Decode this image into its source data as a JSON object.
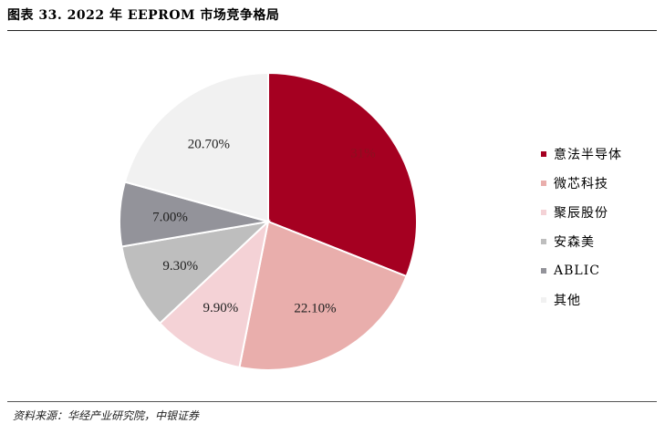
{
  "header": {
    "title": "图表 33.  2022 年 EEPROM 市场竞争格局"
  },
  "footer": {
    "source": "资料来源：华经产业研究院，中银证券"
  },
  "chart_data": {
    "type": "pie",
    "title": "",
    "legend_position": "right",
    "slices": [
      {
        "name": "意法半导体",
        "value": 31,
        "label": "31%",
        "color": "#a50021"
      },
      {
        "name": "微芯科技",
        "value": 22.1,
        "label": "22.10%",
        "color": "#e9aeac"
      },
      {
        "name": "聚辰股份",
        "value": 9.9,
        "label": "9.90%",
        "color": "#f4d2d6"
      },
      {
        "name": "安森美",
        "value": 9.3,
        "label": "9.30%",
        "color": "#bebebe"
      },
      {
        "name": "ABLIC",
        "value": 7.0,
        "label": "7.00%",
        "color": "#93939a"
      },
      {
        "name": "其他",
        "value": 20.7,
        "label": "20.70%",
        "color": "#f1f1f1"
      }
    ]
  }
}
